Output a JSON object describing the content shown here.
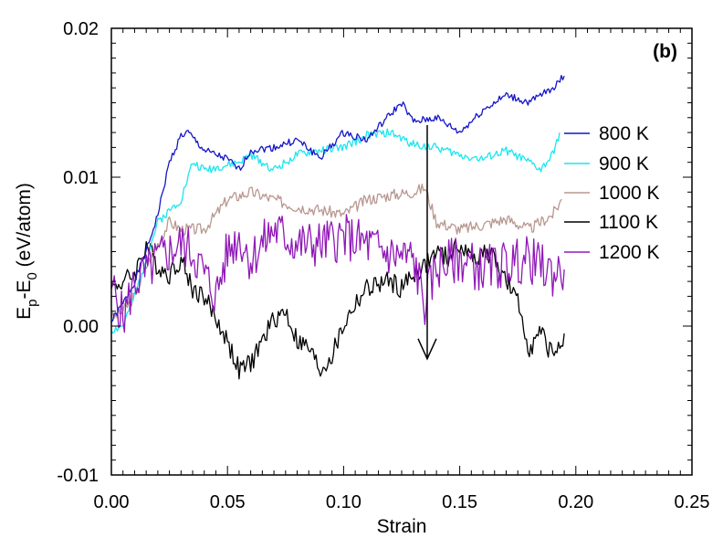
{
  "chart_data": {
    "type": "line",
    "panel_label": "(b)",
    "xlabel": "Strain",
    "ylabel_main": "E",
    "ylabel_sub1": "p",
    "ylabel_mid": "-E",
    "ylabel_sub2": "0",
    "ylabel_tail": " (eV/atom)",
    "xlim": [
      0.0,
      0.25
    ],
    "ylim": [
      -0.01,
      0.02
    ],
    "x_ticks": [
      0.0,
      0.05,
      0.1,
      0.15,
      0.2,
      0.25
    ],
    "x_tick_labels": [
      "0.00",
      "0.05",
      "0.10",
      "0.15",
      "0.20",
      "0.25"
    ],
    "y_ticks": [
      -0.01,
      0.0,
      0.01,
      0.02
    ],
    "y_tick_labels": [
      "-0.01",
      "0.00",
      "0.01",
      "0.02"
    ],
    "grid": false,
    "legend_position": "right",
    "arrow": {
      "x": 0.136,
      "y_from": 0.0135,
      "y_to": -0.0022,
      "color": "#000000"
    },
    "series": [
      {
        "name": "800 K",
        "color": "#1515c8",
        "noise": 0.00025,
        "x": [
          0.0,
          0.005,
          0.01,
          0.015,
          0.02,
          0.025,
          0.03,
          0.033,
          0.04,
          0.05,
          0.055,
          0.06,
          0.07,
          0.08,
          0.09,
          0.1,
          0.11,
          0.12,
          0.125,
          0.13,
          0.14,
          0.15,
          0.16,
          0.17,
          0.18,
          0.19,
          0.195
        ],
        "y": [
          0.0003,
          0.0015,
          0.003,
          0.005,
          0.0075,
          0.011,
          0.0128,
          0.013,
          0.0118,
          0.0112,
          0.0105,
          0.0118,
          0.012,
          0.0125,
          0.0113,
          0.013,
          0.0125,
          0.0142,
          0.015,
          0.0137,
          0.014,
          0.013,
          0.0145,
          0.0155,
          0.015,
          0.016,
          0.0168
        ]
      },
      {
        "name": "900 K",
        "color": "#19e6f0",
        "noise": 0.00028,
        "x": [
          0.0,
          0.005,
          0.01,
          0.015,
          0.02,
          0.03,
          0.035,
          0.04,
          0.05,
          0.055,
          0.06,
          0.07,
          0.08,
          0.09,
          0.1,
          0.11,
          0.12,
          0.13,
          0.14,
          0.15,
          0.16,
          0.17,
          0.18,
          0.185,
          0.19,
          0.193
        ],
        "y": [
          -0.0003,
          0.0,
          0.002,
          0.0045,
          0.007,
          0.0085,
          0.011,
          0.0105,
          0.0108,
          0.011,
          0.0115,
          0.0105,
          0.0115,
          0.0118,
          0.012,
          0.0128,
          0.013,
          0.0122,
          0.012,
          0.0115,
          0.0112,
          0.0118,
          0.011,
          0.0105,
          0.0115,
          0.013
        ]
      },
      {
        "name": "1000 K",
        "color": "#b89890",
        "noise": 0.0004,
        "x": [
          0.0,
          0.005,
          0.01,
          0.015,
          0.02,
          0.025,
          0.03,
          0.04,
          0.05,
          0.06,
          0.07,
          0.08,
          0.09,
          0.1,
          0.11,
          0.12,
          0.13,
          0.135,
          0.14,
          0.15,
          0.16,
          0.17,
          0.18,
          0.19,
          0.194
        ],
        "y": [
          0.0005,
          0.001,
          0.002,
          0.004,
          0.0055,
          0.007,
          0.0065,
          0.0065,
          0.0085,
          0.009,
          0.0085,
          0.008,
          0.0078,
          0.0075,
          0.0085,
          0.0088,
          0.009,
          0.0093,
          0.007,
          0.0065,
          0.0068,
          0.0072,
          0.0065,
          0.0075,
          0.0085
        ]
      },
      {
        "name": "1100 K",
        "color": "#000000",
        "noise": 0.0007,
        "x": [
          0.0,
          0.005,
          0.01,
          0.015,
          0.02,
          0.025,
          0.03,
          0.035,
          0.04,
          0.045,
          0.05,
          0.055,
          0.06,
          0.065,
          0.07,
          0.075,
          0.08,
          0.085,
          0.09,
          0.095,
          0.1,
          0.105,
          0.11,
          0.115,
          0.12,
          0.125,
          0.13,
          0.135,
          0.14,
          0.145,
          0.15,
          0.155,
          0.16,
          0.165,
          0.17,
          0.175,
          0.18,
          0.185,
          0.19,
          0.195
        ],
        "y": [
          0.0025,
          0.003,
          0.0035,
          0.0055,
          0.004,
          0.0035,
          0.0045,
          0.0025,
          0.002,
          0.0005,
          -0.001,
          -0.003,
          -0.0025,
          -0.001,
          0.0005,
          0.001,
          -0.001,
          -0.0015,
          -0.003,
          -0.002,
          0.0,
          0.0015,
          0.0025,
          0.0028,
          0.003,
          0.0025,
          0.0035,
          0.004,
          0.005,
          0.0045,
          0.0055,
          0.0045,
          0.005,
          0.0045,
          0.003,
          0.0015,
          -0.0015,
          -0.0005,
          -0.002,
          -0.0005
        ]
      },
      {
        "name": "1200 K",
        "color": "#9018b8",
        "noise": 0.0016,
        "x": [
          0.0,
          0.005,
          0.01,
          0.015,
          0.02,
          0.03,
          0.035,
          0.04,
          0.045,
          0.05,
          0.055,
          0.06,
          0.07,
          0.08,
          0.09,
          0.1,
          0.11,
          0.12,
          0.13,
          0.135,
          0.14,
          0.15,
          0.16,
          0.17,
          0.18,
          0.185,
          0.19,
          0.195
        ],
        "y": [
          0.003,
          0.0005,
          0.003,
          0.0035,
          0.0045,
          0.0055,
          0.005,
          0.0035,
          0.002,
          0.005,
          0.006,
          0.0045,
          0.0065,
          0.0055,
          0.0055,
          0.006,
          0.0055,
          0.0048,
          0.0045,
          0.0015,
          0.004,
          0.0045,
          0.0038,
          0.0042,
          0.0045,
          0.004,
          0.0035,
          0.0038
        ]
      }
    ]
  }
}
